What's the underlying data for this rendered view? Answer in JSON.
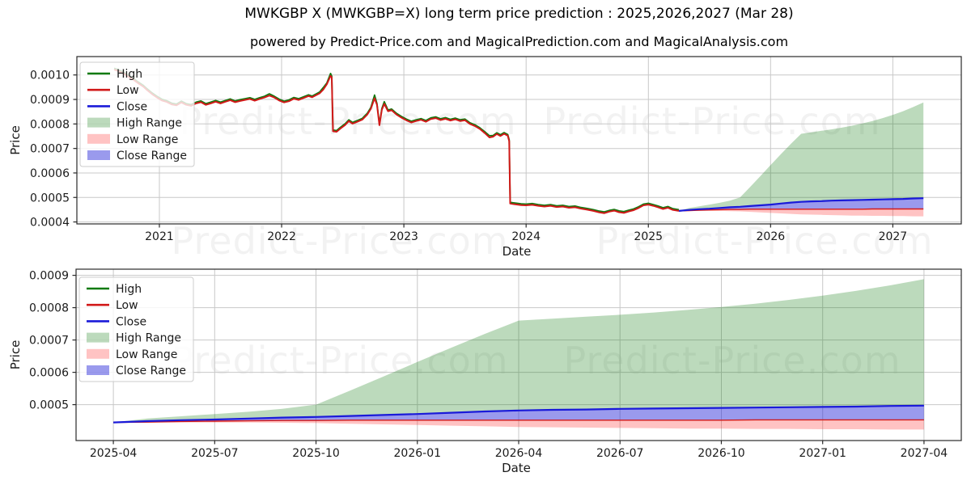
{
  "title": "MWKGBP X (MWKGBP=X) long term price prediction : 2025,2026,2027 (Mar 28)",
  "subtitle": "powered by Predict-Price.com and MagicalPrediction.com and MagicalAnalysis.com",
  "watermark": {
    "text": "Predict-Price.com"
  },
  "colors": {
    "high_line": "#0f7a0f",
    "low_line": "#d11919",
    "close_line": "#1a1ad9",
    "high_range_fill": "rgba(15,122,15,0.28)",
    "low_range_fill": "rgba(255,40,40,0.28)",
    "close_range_fill": "rgba(30,30,215,0.45)",
    "grid": "#c8c8c8",
    "spine": "#2a2a2a",
    "text": "#1a1a1a",
    "watermark": "rgba(0,0,0,0.05)"
  },
  "legend": {
    "items": [
      {
        "label": "High",
        "swatch": "line",
        "color_key": "high_line"
      },
      {
        "label": "Low",
        "swatch": "line",
        "color_key": "low_line"
      },
      {
        "label": "Close",
        "swatch": "line",
        "color_key": "close_line"
      },
      {
        "label": "High Range",
        "swatch": "patch",
        "color_key": "high_range_fill"
      },
      {
        "label": "Low Range",
        "swatch": "patch",
        "color_key": "low_range_fill"
      },
      {
        "label": "Close Range",
        "swatch": "patch",
        "color_key": "close_range_fill"
      }
    ]
  },
  "chart_data": [
    {
      "id": "top",
      "type": "line",
      "xlabel": "Date",
      "ylabel": "Price",
      "xlim": [
        2020.325,
        2027.56
      ],
      "ylim": [
        0.000392,
        0.001075
      ],
      "grid": true,
      "legend_position": "upper left",
      "x_ticks": [
        {
          "v": 2021,
          "label": "2021"
        },
        {
          "v": 2022,
          "label": "2022"
        },
        {
          "v": 2023,
          "label": "2023"
        },
        {
          "v": 2024,
          "label": "2024"
        },
        {
          "v": 2025,
          "label": "2025"
        },
        {
          "v": 2026,
          "label": "2026"
        },
        {
          "v": 2027,
          "label": "2027"
        }
      ],
      "y_ticks": [
        {
          "v": 0.0004,
          "label": "0.0004"
        },
        {
          "v": 0.0005,
          "label": "0.0005"
        },
        {
          "v": 0.0006,
          "label": "0.0006"
        },
        {
          "v": 0.0007,
          "label": "0.0007"
        },
        {
          "v": 0.0008,
          "label": "0.0008"
        },
        {
          "v": 0.0009,
          "label": "0.0009"
        },
        {
          "v": 0.001,
          "label": "0.0010"
        }
      ],
      "close_note": "Close history overlaps the Low line (hidden beneath it)",
      "history": {
        "year": [
          2020.63,
          2020.67,
          2020.71,
          2020.75,
          2020.79,
          2020.83,
          2020.87,
          2020.9,
          2020.94,
          2020.98,
          2021.02,
          2021.06,
          2021.1,
          2021.14,
          2021.18,
          2021.22,
          2021.26,
          2021.3,
          2021.34,
          2021.38,
          2021.42,
          2021.46,
          2021.5,
          2021.54,
          2021.58,
          2021.62,
          2021.66,
          2021.7,
          2021.74,
          2021.78,
          2021.82,
          2021.86,
          2021.9,
          2021.94,
          2021.98,
          2022.02,
          2022.06,
          2022.1,
          2022.14,
          2022.18,
          2022.22,
          2022.25,
          2022.28,
          2022.31,
          2022.34,
          2022.37,
          2022.4,
          2022.41,
          2022.42,
          2022.45,
          2022.48,
          2022.52,
          2022.55,
          2022.58,
          2022.62,
          2022.66,
          2022.7,
          2022.73,
          2022.76,
          2022.78,
          2022.8,
          2022.82,
          2022.84,
          2022.87,
          2022.9,
          2022.94,
          2022.98,
          2023.02,
          2023.06,
          2023.1,
          2023.14,
          2023.18,
          2023.22,
          2023.26,
          2023.3,
          2023.34,
          2023.38,
          2023.42,
          2023.46,
          2023.5,
          2023.54,
          2023.58,
          2023.62,
          2023.66,
          2023.7,
          2023.73,
          2023.76,
          2023.79,
          2023.82,
          2023.85,
          2023.862,
          2023.87,
          2023.91,
          2023.96,
          2024.0,
          2024.05,
          2024.1,
          2024.15,
          2024.2,
          2024.25,
          2024.3,
          2024.35,
          2024.4,
          2024.45,
          2024.5,
          2024.55,
          2024.6,
          2024.64,
          2024.68,
          2024.72,
          2024.76,
          2024.8,
          2024.84,
          2024.88,
          2024.92,
          2024.96,
          2025.0,
          2025.04,
          2025.08,
          2025.12,
          2025.16,
          2025.2,
          2025.25
        ],
        "low": [
          0.001022,
          0.001015,
          0.001005,
          0.000992,
          0.00098,
          0.000965,
          0.000952,
          0.000938,
          0.000922,
          0.000908,
          0.000896,
          0.00089,
          0.00088,
          0.000876,
          0.000888,
          0.000878,
          0.000874,
          0.000884,
          0.000889,
          0.000878,
          0.000884,
          0.000891,
          0.000884,
          0.000891,
          0.000897,
          0.000889,
          0.000894,
          0.000898,
          0.000902,
          0.000895,
          0.000902,
          0.000908,
          0.000916,
          0.000908,
          0.000896,
          0.000888,
          0.000893,
          0.000903,
          0.000898,
          0.000906,
          0.000914,
          0.000909,
          0.000917,
          0.000925,
          0.00094,
          0.000962,
          0.000996,
          0.00099,
          0.00077,
          0.000768,
          0.000781,
          0.000796,
          0.000812,
          0.000801,
          0.000809,
          0.000818,
          0.000838,
          0.000862,
          0.000905,
          0.000878,
          0.000795,
          0.000858,
          0.000882,
          0.000852,
          0.000856,
          0.000838,
          0.000826,
          0.000815,
          0.000806,
          0.000812,
          0.000817,
          0.000809,
          0.00082,
          0.000824,
          0.000816,
          0.000821,
          0.000814,
          0.000819,
          0.000812,
          0.000815,
          0.0008,
          0.000792,
          0.00078,
          0.000764,
          0.000745,
          0.000748,
          0.000759,
          0.000751,
          0.00076,
          0.000752,
          0.00073,
          0.000475,
          0.000472,
          0.000469,
          0.000468,
          0.00047,
          0.000466,
          0.000463,
          0.000466,
          0.000461,
          0.000463,
          0.000458,
          0.00046,
          0.000454,
          0.00045,
          0.000445,
          0.000439,
          0.000436,
          0.000442,
          0.000446,
          0.00044,
          0.000437,
          0.000443,
          0.000448,
          0.000457,
          0.000468,
          0.000471,
          0.000466,
          0.00046,
          0.000453,
          0.000458,
          0.000449,
          0.000445
        ],
        "high": [
          0.001027,
          0.00102,
          0.00101,
          0.000997,
          0.000985,
          0.00097,
          0.000957,
          0.000943,
          0.000927,
          0.000913,
          0.000901,
          0.000895,
          0.000885,
          0.000881,
          0.000893,
          0.000883,
          0.000879,
          0.000889,
          0.000894,
          0.000883,
          0.000889,
          0.000896,
          0.000889,
          0.000896,
          0.000902,
          0.000894,
          0.000899,
          0.000903,
          0.000907,
          0.0009,
          0.000907,
          0.000913,
          0.000923,
          0.000913,
          0.000901,
          0.000893,
          0.000898,
          0.000908,
          0.000903,
          0.000911,
          0.000919,
          0.000914,
          0.000922,
          0.00093,
          0.000948,
          0.000967,
          0.001006,
          0.000995,
          0.000775,
          0.000773,
          0.000786,
          0.000801,
          0.000817,
          0.000806,
          0.000814,
          0.000823,
          0.000843,
          0.000867,
          0.000918,
          0.000883,
          0.0008,
          0.000863,
          0.000891,
          0.000857,
          0.000861,
          0.000843,
          0.000831,
          0.00082,
          0.000811,
          0.000817,
          0.000822,
          0.000814,
          0.000825,
          0.000829,
          0.000821,
          0.000826,
          0.000819,
          0.000824,
          0.000817,
          0.00082,
          0.000805,
          0.000797,
          0.000785,
          0.000769,
          0.000752,
          0.000753,
          0.000764,
          0.000756,
          0.000765,
          0.000757,
          0.000735,
          0.00048,
          0.000477,
          0.000474,
          0.000473,
          0.000475,
          0.000471,
          0.000468,
          0.000471,
          0.000466,
          0.000468,
          0.000463,
          0.000465,
          0.000459,
          0.000455,
          0.00045,
          0.000444,
          0.000441,
          0.000447,
          0.000451,
          0.000445,
          0.000442,
          0.000448,
          0.000453,
          0.000462,
          0.000473,
          0.000476,
          0.000471,
          0.000465,
          0.000458,
          0.000463,
          0.000454,
          0.00045
        ]
      }
    },
    {
      "id": "bottom",
      "type": "area",
      "xlabel": "Date",
      "ylabel": "Price",
      "xlim": [
        2025.158,
        2027.342
      ],
      "ylim": [
        0.000389,
        0.000919
      ],
      "grid": true,
      "legend_position": "upper left",
      "x_ticks": [
        {
          "v": 2025.25,
          "label": "2025-04"
        },
        {
          "v": 2025.5,
          "label": "2025-07"
        },
        {
          "v": 2025.75,
          "label": "2025-10"
        },
        {
          "v": 2026.0,
          "label": "2026-01"
        },
        {
          "v": 2026.25,
          "label": "2026-04"
        },
        {
          "v": 2026.5,
          "label": "2026-07"
        },
        {
          "v": 2026.75,
          "label": "2026-10"
        },
        {
          "v": 2027.0,
          "label": "2027-01"
        },
        {
          "v": 2027.25,
          "label": "2027-04"
        }
      ],
      "y_ticks": [
        {
          "v": 0.0005,
          "label": "0.0005"
        },
        {
          "v": 0.0006,
          "label": "0.0006"
        },
        {
          "v": 0.0007,
          "label": "0.0007"
        },
        {
          "v": 0.0008,
          "label": "0.0008"
        },
        {
          "v": 0.0009,
          "label": "0.0009"
        }
      ],
      "prediction": {
        "year": [
          2025.25,
          2025.3333,
          2025.4167,
          2025.5,
          2025.5833,
          2025.6667,
          2025.75,
          2025.8333,
          2025.9167,
          2026.0,
          2026.0833,
          2026.1667,
          2026.25,
          2026.3333,
          2026.4167,
          2026.5,
          2026.5833,
          2026.6667,
          2026.75,
          2026.8333,
          2026.9167,
          2027.0,
          2027.0833,
          2027.1667,
          2027.25
        ],
        "close": [
          0.000445,
          0.000449,
          0.000452,
          0.000454,
          0.000457,
          0.00046,
          0.000462,
          0.000465,
          0.000468,
          0.000471,
          0.000475,
          0.000479,
          0.000482,
          0.000484,
          0.000485,
          0.000487,
          0.000488,
          0.000489,
          0.00049,
          0.000491,
          0.000492,
          0.000493,
          0.000494,
          0.000496,
          0.000497
        ],
        "high_top": [
          0.000445,
          0.000457,
          0.000464,
          0.000471,
          0.000478,
          0.000487,
          0.0005,
          0.000543,
          0.000587,
          0.000632,
          0.000676,
          0.000719,
          0.00076,
          0.000766,
          0.000772,
          0.000778,
          0.000785,
          0.000793,
          0.000802,
          0.000812,
          0.000824,
          0.000837,
          0.000852,
          0.000869,
          0.000888
        ],
        "close_low": [
          0.000445,
          0.000446,
          0.000448,
          0.000449,
          0.00045,
          0.000451,
          0.000451,
          0.000452,
          0.000452,
          0.000452,
          0.000452,
          0.000452,
          0.000452,
          0.000452,
          0.000452,
          0.000452,
          0.000452,
          0.000452,
          0.000452,
          0.000453,
          0.000453,
          0.000453,
          0.000453,
          0.000453,
          0.000453
        ],
        "low_low": [
          0.000445,
          0.000445,
          0.000445,
          0.000445,
          0.000445,
          0.000444,
          0.000443,
          0.000441,
          0.000439,
          0.000437,
          0.000435,
          0.000433,
          0.000431,
          0.00043,
          0.000429,
          0.000428,
          0.000427,
          0.000426,
          0.000426,
          0.000425,
          0.000425,
          0.000424,
          0.000424,
          0.000423,
          0.000423
        ]
      }
    }
  ]
}
